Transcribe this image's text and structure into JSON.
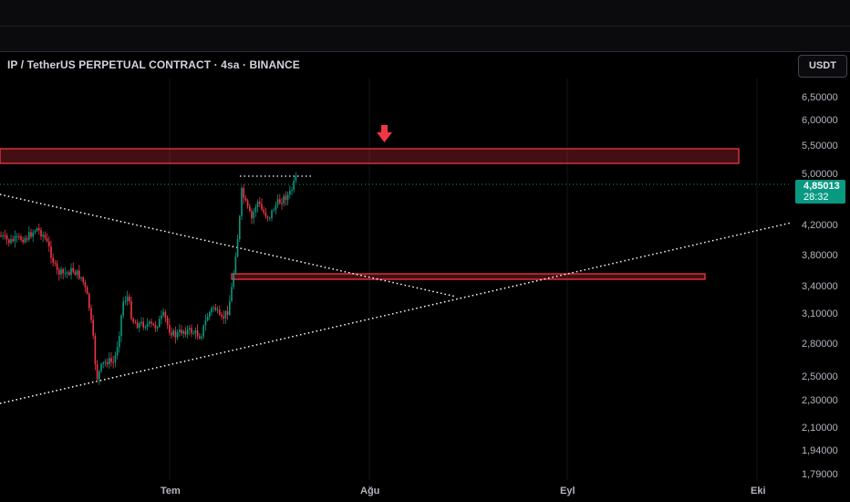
{
  "header": {
    "symbol_title": "IP / TetherUS PERPETUAL CONTRACT · 4sa · BINANCE",
    "currency_label": "USDT"
  },
  "price_axis": {
    "ticks": [
      "6,50000",
      "6,00000",
      "5,50000",
      "5,00000",
      "4,20000",
      "3,80000",
      "3,40000",
      "3,10000",
      "2,80000",
      "2,50000",
      "2,30000",
      "2,10000",
      "1,94000",
      "1,79000"
    ],
    "last_price": "4,85013",
    "countdown": "28:32"
  },
  "time_axis": {
    "ticks": [
      "Tem",
      "Ağu",
      "Eyl",
      "Eki"
    ]
  },
  "colors": {
    "up": "#089981",
    "down": "#f23645",
    "zone": "#f23645",
    "background": "#000000"
  },
  "icons": {
    "arrow": "arrow-down-icon"
  }
}
